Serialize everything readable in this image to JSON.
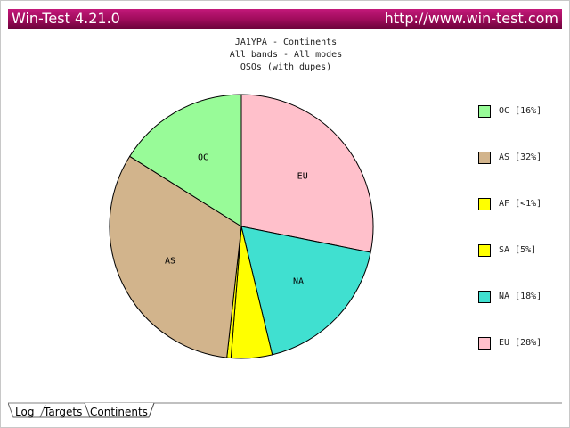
{
  "window": {
    "title": "Win-Test 4.21.0",
    "url": "http://www.win-test.com"
  },
  "tabs": [
    {
      "label": "Log",
      "active": false
    },
    {
      "label": "Targets",
      "active": false
    },
    {
      "label": "Continents",
      "active": true
    }
  ],
  "chart_data": {
    "type": "pie",
    "title": "JA1YPA - Continents",
    "subtitle": "All bands - All modes",
    "subtitle2": "QSOs (with dupes)",
    "slices": [
      {
        "label": "EU",
        "legend": "EU [28%]",
        "value": 28,
        "color": "#ffc0cb"
      },
      {
        "label": "NA",
        "legend": "NA [18%]",
        "value": 18,
        "color": "#40e0d0"
      },
      {
        "label": "SA",
        "legend": "SA [5%]",
        "value": 5,
        "color": "#ffff00"
      },
      {
        "label": "AF",
        "legend": "AF [<1%]",
        "value": 0.5,
        "color": "#ffff00"
      },
      {
        "label": "AS",
        "legend": "AS [32%]",
        "value": 32,
        "color": "#d2b48c"
      },
      {
        "label": "OC",
        "legend": "OC [16%]",
        "value": 16,
        "color": "#98fb98"
      }
    ],
    "legend_order": [
      "OC",
      "AS",
      "AF",
      "SA",
      "NA",
      "EU"
    ],
    "legend_position": "right"
  }
}
